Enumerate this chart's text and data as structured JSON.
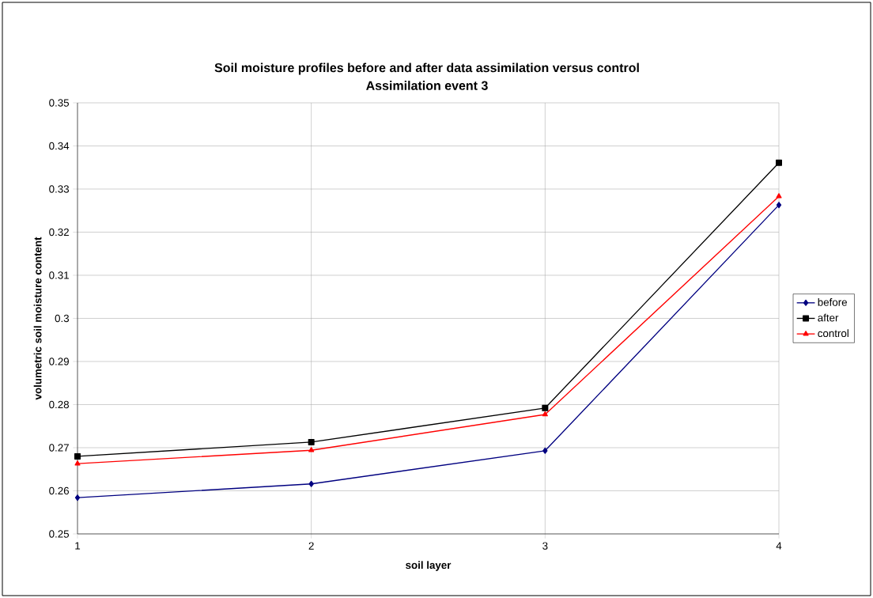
{
  "chart_data": {
    "type": "line",
    "title": "Soil moisture profiles before and after data assimilation versus control",
    "subtitle": "Assimilation event 3",
    "xlabel": "soil layer",
    "ylabel": "volumetric soil moisture content",
    "x": [
      1,
      2,
      3,
      4
    ],
    "xlim": [
      1,
      4
    ],
    "xticks": [
      1,
      2,
      3,
      4
    ],
    "ylim": [
      0.25,
      0.35
    ],
    "yticks": [
      0.25,
      0.26,
      0.27,
      0.28,
      0.29,
      0.3,
      0.31,
      0.32,
      0.33,
      0.34,
      0.35
    ],
    "series": [
      {
        "name": "before",
        "color": "#000080",
        "marker": "diamond",
        "values": [
          0.2584,
          0.2616,
          0.2693,
          0.3263
        ]
      },
      {
        "name": "after",
        "color": "#000000",
        "marker": "square",
        "values": [
          0.268,
          0.2713,
          0.2792,
          0.3361
        ]
      },
      {
        "name": "control",
        "color": "#ff0000",
        "marker": "triangle",
        "values": [
          0.2663,
          0.2694,
          0.2777,
          0.3283
        ]
      }
    ],
    "grid": true,
    "legend": "right",
    "line_style": "solid"
  }
}
